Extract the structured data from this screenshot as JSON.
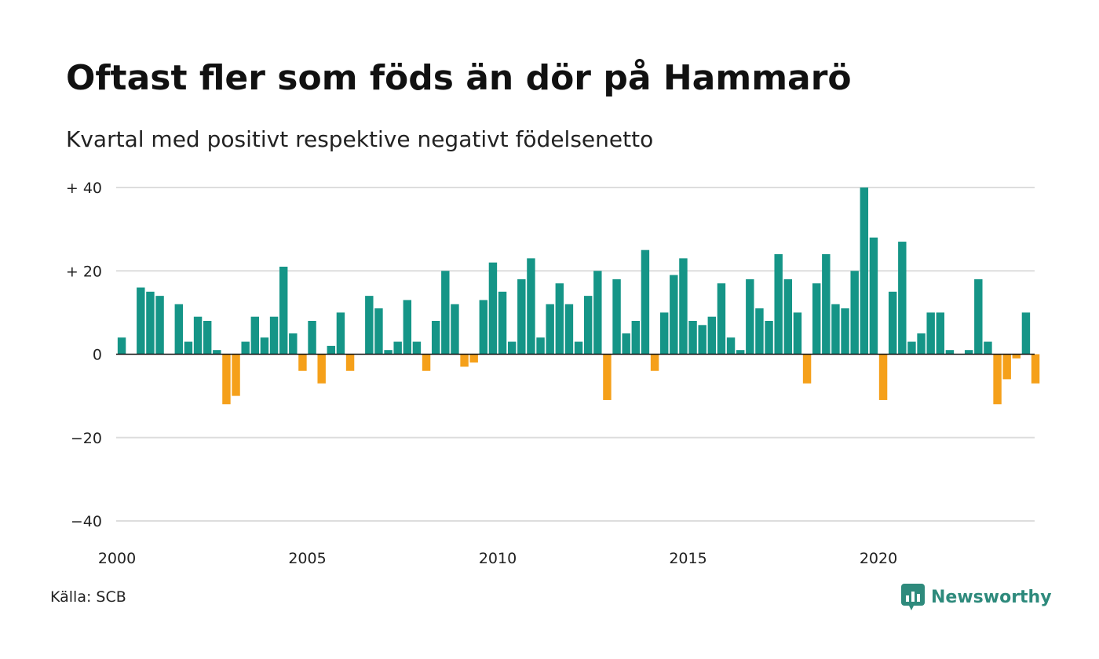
{
  "header": {
    "title": "Oftast fler som föds än dör på Hammarö",
    "subtitle": "Kvartal med positivt respektive negativt födelsenetto"
  },
  "footer": {
    "source": "Källa: SCB",
    "brand": "Newsworthy",
    "brand_icon": "newsworthy-logo-icon"
  },
  "colors": {
    "positive": "#159587",
    "negative": "#f5a01a",
    "grid": "#dddddd",
    "brand": "#2e8a7c"
  },
  "chart_data": {
    "type": "bar",
    "title": "Oftast fler som föds än dör på Hammarö",
    "subtitle": "Kvartal med positivt respektive negativt födelsenetto",
    "xlabel": "",
    "ylabel": "",
    "ylim": [
      -40,
      40
    ],
    "y_ticks": [
      {
        "value": 40,
        "label": "+ 40"
      },
      {
        "value": 20,
        "label": "+ 20"
      },
      {
        "value": 0,
        "label": "0"
      },
      {
        "value": -20,
        "label": "−20"
      },
      {
        "value": -40,
        "label": "−40"
      }
    ],
    "x_ticks": [
      {
        "year": 2000,
        "label": "2000"
      },
      {
        "year": 2005,
        "label": "2005"
      },
      {
        "year": 2010,
        "label": "2010"
      },
      {
        "year": 2015,
        "label": "2015"
      },
      {
        "year": 2020,
        "label": "2020"
      }
    ],
    "start_year": 2000,
    "quarters_per_year": 4,
    "grid": true,
    "values": [
      4,
      0,
      16,
      15,
      14,
      0,
      12,
      3,
      9,
      8,
      1,
      -12,
      -10,
      3,
      9,
      4,
      9,
      21,
      5,
      -4,
      8,
      -7,
      2,
      10,
      -4,
      0,
      14,
      11,
      1,
      3,
      13,
      3,
      -4,
      8,
      20,
      12,
      -3,
      -2,
      13,
      22,
      15,
      3,
      18,
      23,
      4,
      12,
      17,
      12,
      3,
      14,
      20,
      -11,
      18,
      5,
      8,
      25,
      -4,
      10,
      19,
      23,
      8,
      7,
      9,
      17,
      4,
      1,
      18,
      11,
      8,
      24,
      18,
      10,
      -7,
      17,
      24,
      12,
      11,
      20,
      40,
      28,
      -11,
      15,
      27,
      3,
      5,
      10,
      10,
      1,
      0,
      1,
      18,
      3,
      -12,
      -6,
      -1,
      10,
      -7
    ]
  }
}
